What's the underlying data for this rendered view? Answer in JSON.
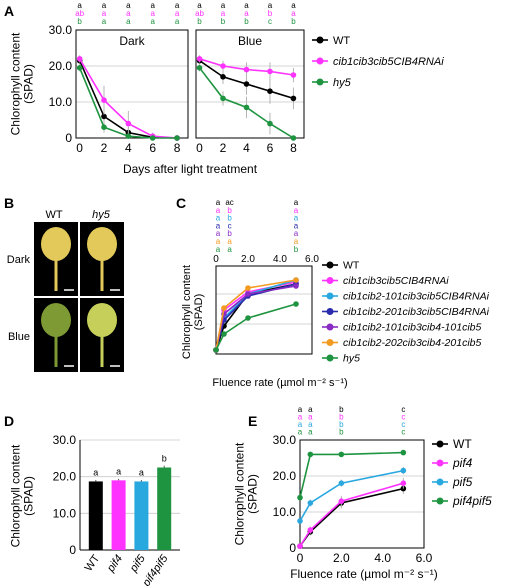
{
  "colors": {
    "wt": "#000000",
    "cib": "#ff33ff",
    "hy5": "#1e9440",
    "cib2_101": "#29a8e0",
    "cib2_201": "#2a2aae",
    "cib2_101_4": "#8a2bc4",
    "cib2_202_4": "#f39a21",
    "pif4": "#ff33ff",
    "pif5": "#29a8e0",
    "pif4pif5": "#1e9440",
    "leaf_dark": "#e3c95a",
    "leaf_blue_wt": "#7e9a35",
    "leaf_blue_hy5": "#c6cf5a"
  },
  "panels": {
    "A": "A",
    "B": "B",
    "C": "C",
    "D": "D",
    "E": "E"
  },
  "chart_data": [
    {
      "id": "A",
      "type": "line",
      "ylabel": "Chlorophyll content\n(SPAD)",
      "xlabel": "Days after light treatment",
      "ylim": [
        0,
        30
      ],
      "yticks": [
        "0",
        "10.0",
        "20.0",
        "30.0"
      ],
      "xticks": [
        "0",
        "2",
        "4",
        "6",
        "8"
      ],
      "grid": true,
      "subplots": [
        {
          "title": "Dark",
          "x": [
            0,
            2,
            4,
            6,
            8
          ],
          "series": [
            {
              "name": "WT",
              "color": "#000000",
              "values": [
                21.5,
                6.0,
                1.5,
                0.2,
                0.0
              ],
              "err": [
                1.0,
                2.0,
                1.5,
                0.5,
                0.3
              ]
            },
            {
              "name": "cib1cib3cib5CIB4RNAi",
              "color": "#ff33ff",
              "values": [
                22.0,
                10.5,
                4.0,
                0.5,
                0.0
              ],
              "err": [
                1.0,
                4.0,
                3.5,
                1.0,
                0.3
              ]
            },
            {
              "name": "hy5",
              "color": "#1e9440",
              "values": [
                19.5,
                3.0,
                0.5,
                0.0,
                0.0
              ],
              "err": [
                1.0,
                1.5,
                0.5,
                0.3,
                0.2
              ]
            }
          ],
          "letters": [
            [
              "a",
              "a",
              "a",
              "a",
              "a"
            ],
            [
              "ab",
              "a",
              "a",
              "a",
              "a"
            ],
            [
              "b",
              "a",
              "a",
              "a",
              "a"
            ]
          ]
        },
        {
          "title": "Blue",
          "x": [
            0,
            2,
            4,
            6,
            8
          ],
          "series": [
            {
              "name": "WT",
              "color": "#000000",
              "values": [
                21.5,
                17.0,
                15.0,
                13.0,
                11.0
              ],
              "err": [
                1.0,
                2.0,
                3.0,
                3.5,
                3.0
              ]
            },
            {
              "name": "cib1cib3cib5CIB4RNAi",
              "color": "#ff33ff",
              "values": [
                22.0,
                20.0,
                19.0,
                18.5,
                17.5
              ],
              "err": [
                1.0,
                1.5,
                2.0,
                2.5,
                2.0
              ]
            },
            {
              "name": "hy5",
              "color": "#1e9440",
              "values": [
                19.5,
                11.0,
                8.5,
                4.0,
                0.0
              ],
              "err": [
                1.0,
                2.0,
                3.0,
                3.0,
                0.5
              ]
            }
          ],
          "letters": [
            [
              "a",
              "a",
              "a",
              "a",
              "a"
            ],
            [
              "ab",
              "a",
              "a",
              "b",
              "a"
            ],
            [
              "b",
              "b",
              "b",
              "c",
              "b"
            ]
          ]
        }
      ],
      "legend": [
        "WT",
        "cib1cib3cib5CIB4RNAi",
        "hy5"
      ]
    },
    {
      "id": "C",
      "type": "line",
      "ylabel": "Chlorophyll content\n(SPAD)",
      "xlabel": "Fluence rate (µmol m⁻² s⁻¹)",
      "ylim": [
        0,
        25
      ],
      "xlim": [
        0,
        6
      ],
      "xticks": [
        "0",
        "2.0",
        "4.0",
        "6.0"
      ],
      "x": [
        0,
        0.5,
        2,
        5
      ],
      "grid": true,
      "series": [
        {
          "name": "WT",
          "color": "#000000",
          "values": [
            1.0,
            7.0,
            15.0,
            17.5
          ]
        },
        {
          "name": "cib1cib3cib5CIB4RNAi",
          "color": "#ff33ff",
          "values": [
            1.0,
            11.0,
            15.5,
            18.0
          ]
        },
        {
          "name": "cib1cib2-101cib3cib5CIB4RNAi",
          "color": "#29a8e0",
          "values": [
            1.0,
            9.0,
            15.0,
            18.5
          ]
        },
        {
          "name": "cib1cib2-201cib3cib5CIB4RNAi",
          "color": "#2a2aae",
          "values": [
            1.0,
            8.5,
            14.5,
            17.5
          ]
        },
        {
          "name": "cib1cib2-101cib3cib4-101cib5",
          "color": "#8a2bc4",
          "values": [
            1.0,
            10.0,
            15.0,
            17.0
          ]
        },
        {
          "name": "cib1cib2-202cib3cib4-201cib5",
          "color": "#f39a21",
          "values": [
            1.0,
            11.5,
            16.5,
            18.5
          ]
        },
        {
          "name": "hy5",
          "color": "#1e9440",
          "values": [
            1.0,
            5.0,
            9.0,
            12.5
          ]
        }
      ],
      "letters": [
        [
          "a",
          "a",
          "a",
          "a",
          "a",
          "a",
          "a"
        ],
        [
          "ac",
          "b",
          "b",
          "c",
          "b",
          "a",
          "a"
        ],
        [],
        [
          "a",
          "a",
          "a",
          "a",
          "a",
          "a",
          "b"
        ]
      ],
      "legend": [
        "WT",
        "cib1cib3cib5CIB4RNAi",
        "cib1cib2-101cib3cib5CIB4RNAi",
        "cib1cib2-201cib3cib5CIB4RNAi",
        "cib1cib2-101cib3cib4-101cib5",
        "cib1cib2-202cib3cib4-201cib5",
        "hy5"
      ]
    },
    {
      "id": "D",
      "type": "bar",
      "ylabel": "Chlorophyll content\n(SPAD)",
      "ylim": [
        0,
        30
      ],
      "yticks": [
        "0",
        "10.0",
        "20.0",
        "30.0"
      ],
      "categories": [
        "WT",
        "pif4",
        "pif5",
        "pif4pif5"
      ],
      "values": [
        18.7,
        19.0,
        18.7,
        22.5
      ],
      "err": [
        0.4,
        0.4,
        0.4,
        0.5
      ],
      "letters": [
        "a",
        "a",
        "a",
        "b"
      ],
      "bar_colors": [
        "#000000",
        "#ff33ff",
        "#29a8e0",
        "#1e9440"
      ],
      "grid": true
    },
    {
      "id": "E",
      "type": "line",
      "ylabel": "Chlorophyll content\n(SPAD)",
      "xlabel": "Fluence rate (µmol m⁻² s⁻¹)",
      "ylim": [
        0,
        30
      ],
      "yticks": [
        "0",
        "10.0",
        "20.0",
        "30.0"
      ],
      "xlim": [
        0,
        6
      ],
      "xticks": [
        "0",
        "2.0",
        "4.0",
        "6.0"
      ],
      "x": [
        0,
        0.5,
        2,
        5
      ],
      "grid": true,
      "series": [
        {
          "name": "WT",
          "color": "#000000",
          "values": [
            0.5,
            4.5,
            12.5,
            16.5
          ],
          "err": [
            0.3,
            1.0,
            1.5,
            1.5
          ]
        },
        {
          "name": "pif4",
          "color": "#ff33ff",
          "values": [
            0.5,
            5.0,
            13.0,
            18.0
          ],
          "err": [
            0.3,
            1.0,
            1.5,
            1.5
          ]
        },
        {
          "name": "pif5",
          "color": "#29a8e0",
          "values": [
            7.5,
            12.5,
            18.0,
            21.5
          ],
          "err": [
            0.5,
            1.0,
            1.0,
            1.0
          ]
        },
        {
          "name": "pif4pif5",
          "color": "#1e9440",
          "values": [
            14.0,
            26.0,
            26.0,
            26.5
          ],
          "err": [
            0.5,
            0.5,
            0.5,
            0.5
          ]
        }
      ],
      "letters": [
        [
          "a",
          "a",
          "a",
          "a"
        ],
        [
          "a",
          "a",
          "a",
          "a"
        ],
        [
          "b",
          "b",
          "b",
          "b"
        ],
        [
          "c",
          "c",
          "c",
          "c"
        ]
      ],
      "legend": [
        "WT",
        "pif4",
        "pif5",
        "pif4pif5"
      ]
    }
  ],
  "photos": {
    "col_wt": "WT",
    "col_hy5": "hy5",
    "row_dark": "Dark",
    "row_blue": "Blue"
  }
}
